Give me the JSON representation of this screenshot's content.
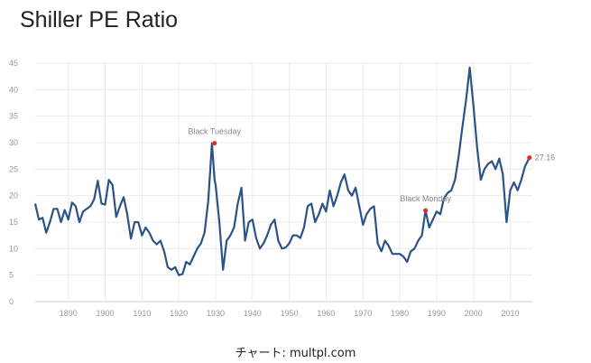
{
  "header": {
    "title": "Shiller PE Ratio"
  },
  "footer": {
    "source": "チャート: multpl.com"
  },
  "chart_data": {
    "type": "line",
    "title": "Shiller PE Ratio",
    "xlabel": "",
    "ylabel": "",
    "xlim": [
      1881,
      2016
    ],
    "ylim": [
      0,
      45
    ],
    "grid": true,
    "legend": "none",
    "line_color": "#2b5387",
    "marker_color": "#e8262b",
    "y_ticks": [
      0,
      5,
      10,
      15,
      20,
      25,
      30,
      35,
      40,
      45
    ],
    "x_ticks": [
      1890,
      1900,
      1910,
      1920,
      1930,
      1940,
      1950,
      1960,
      1970,
      1980,
      1990,
      2000,
      2010
    ],
    "series": [
      {
        "x": [
          1881,
          1882,
          1883,
          1884,
          1885,
          1886,
          1887,
          1888,
          1889,
          1890,
          1891,
          1892,
          1893,
          1894,
          1895,
          1896,
          1897,
          1898,
          1899,
          1900,
          1901,
          1902,
          1903,
          1904,
          1905,
          1906,
          1907,
          1908,
          1909,
          1910,
          1911,
          1912,
          1913,
          1914,
          1915,
          1916,
          1917,
          1918,
          1919,
          1920,
          1921,
          1922,
          1923,
          1924,
          1925,
          1926,
          1927,
          1928,
          1929,
          1929.7,
          1930,
          1931,
          1932,
          1933,
          1934,
          1935,
          1936,
          1937,
          1938,
          1939,
          1940,
          1941,
          1942,
          1943,
          1944,
          1945,
          1946,
          1947,
          1948,
          1949,
          1950,
          1951,
          1952,
          1953,
          1954,
          1955,
          1956,
          1957,
          1958,
          1959,
          1960,
          1961,
          1962,
          1963,
          1964,
          1965,
          1966,
          1967,
          1968,
          1969,
          1970,
          1971,
          1972,
          1973,
          1974,
          1975,
          1976,
          1977,
          1978,
          1979,
          1980,
          1981,
          1982,
          1983,
          1984,
          1985,
          1986,
          1987,
          1988,
          1989,
          1990,
          1991,
          1992,
          1993,
          1994,
          1995,
          1996,
          1997,
          1998,
          1999,
          2000,
          2001,
          2002,
          2003,
          2004,
          2005,
          2006,
          2007,
          2008,
          2009,
          2010,
          2011,
          2012,
          2013,
          2014,
          2015.2
        ],
        "y": [
          18.5,
          15.5,
          15.8,
          13.0,
          15.0,
          17.5,
          17.5,
          15.0,
          17.3,
          15.5,
          18.7,
          18.0,
          15.0,
          17.0,
          17.5,
          18.0,
          19.3,
          22.8,
          18.5,
          18.3,
          23.0,
          22.0,
          16.0,
          18.0,
          19.7,
          16.5,
          11.9,
          15.0,
          15.0,
          12.5,
          14.0,
          13.0,
          11.5,
          10.8,
          11.5,
          9.5,
          6.5,
          6.0,
          6.5,
          5.0,
          5.2,
          7.5,
          7.0,
          8.5,
          10.0,
          11.0,
          13.0,
          19.0,
          29.9,
          23.0,
          22.0,
          15.0,
          6.0,
          11.5,
          12.5,
          14.0,
          18.5,
          21.5,
          11.5,
          15.0,
          15.5,
          12.0,
          10.0,
          11.0,
          12.5,
          14.5,
          15.5,
          11.5,
          10.0,
          10.2,
          11.0,
          12.5,
          12.5,
          12.0,
          14.0,
          18.0,
          18.5,
          15.0,
          16.5,
          18.5,
          17.0,
          21.0,
          18.0,
          20.0,
          22.5,
          24.0,
          21.0,
          20.0,
          21.5,
          18.0,
          14.5,
          16.5,
          17.5,
          18.0,
          11.0,
          9.5,
          11.5,
          10.5,
          9.0,
          9.0,
          9.0,
          8.5,
          7.5,
          9.5,
          10.0,
          11.5,
          12.5,
          17.2,
          14.0,
          15.5,
          17.0,
          16.5,
          19.5,
          20.5,
          21.0,
          23.0,
          27.5,
          33.0,
          38.0,
          44.2,
          37.0,
          29.0,
          23.0,
          25.0,
          26.0,
          26.5,
          25.0,
          27.0,
          24.0,
          15.0,
          21.0,
          22.5,
          21.0,
          23.0,
          25.5,
          27.16
        ]
      }
    ],
    "annotations": [
      {
        "label": "Black Tuesday",
        "x": 1929.7,
        "y": 29.9
      },
      {
        "label": "Black Monday",
        "x": 1987,
        "y": 17.2
      }
    ],
    "last_value_label": "27.16",
    "last_value": {
      "x": 2015.2,
      "y": 27.16
    }
  }
}
